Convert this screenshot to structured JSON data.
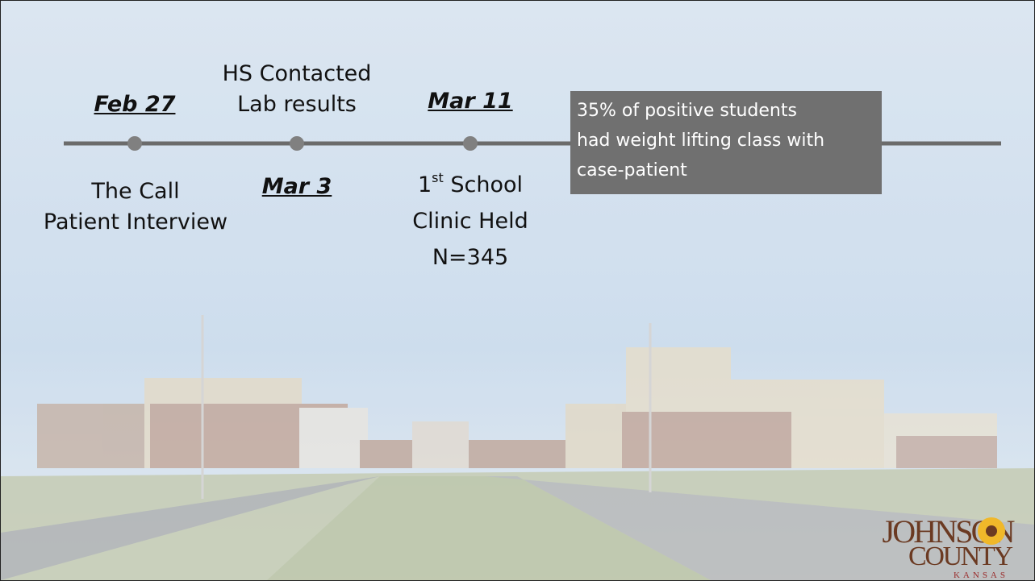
{
  "timeline": {
    "above": [
      {
        "date": "Feb 27"
      },
      {
        "lines": [
          "HS Contacted",
          "Lab results"
        ]
      },
      {
        "date": "Mar 11"
      }
    ],
    "below": [
      {
        "lines": [
          "The Call",
          "Patient Interview"
        ]
      },
      {
        "date": "Mar 3"
      },
      {
        "ordinal": "1",
        "suffix": "st",
        "rest": " School",
        "lines": [
          "Clinic Held",
          "N=345"
        ]
      }
    ]
  },
  "callout": {
    "lines": [
      "35% of positive students",
      "had weight lifting class with",
      "case-patient"
    ]
  },
  "logo": {
    "line1": "JOHNSON",
    "line2": "COUNTY",
    "line3": "KANSAS"
  }
}
